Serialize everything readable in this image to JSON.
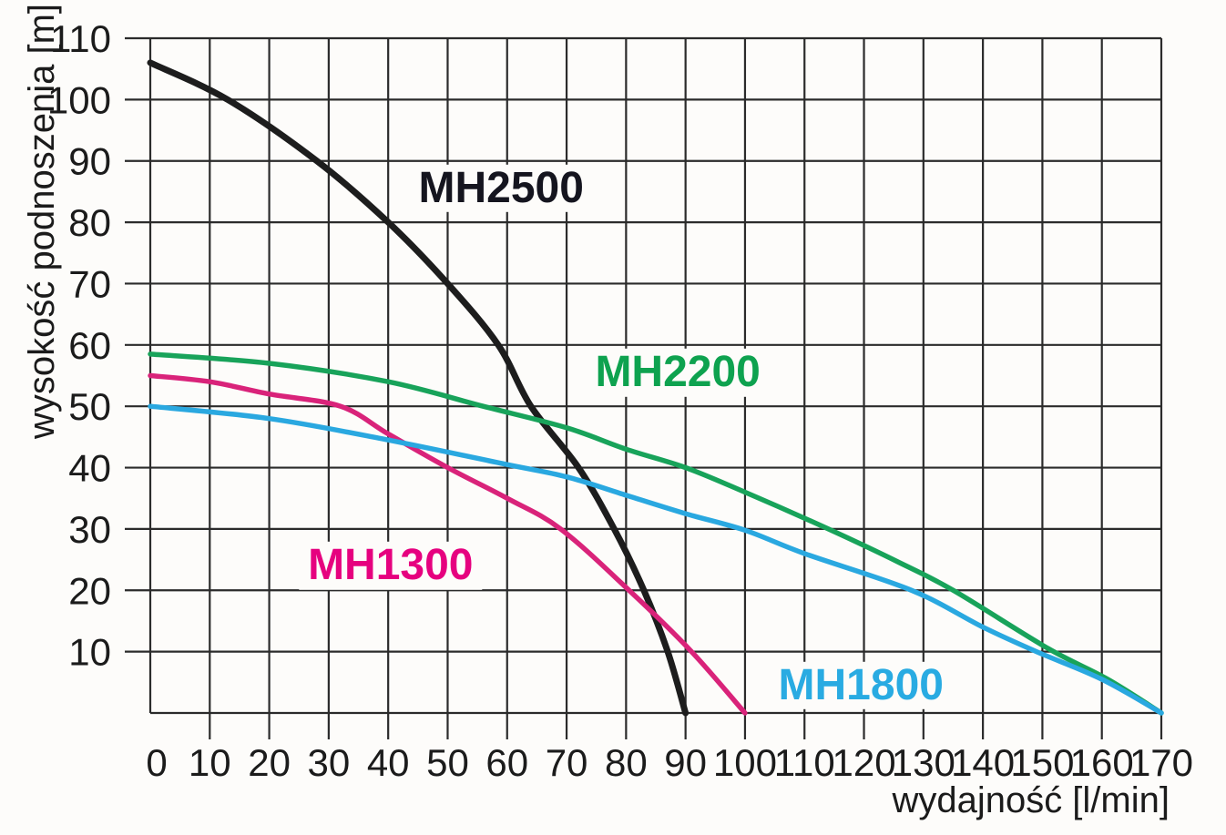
{
  "chart_data": {
    "type": "line",
    "title": "",
    "xlabel": "wydajność [l/min]",
    "ylabel": "wysokość podnoszenia [m]",
    "xlim": [
      0,
      170
    ],
    "ylim": [
      0,
      110
    ],
    "x_ticks": [
      0,
      10,
      20,
      30,
      40,
      50,
      60,
      70,
      80,
      90,
      100,
      110,
      120,
      130,
      140,
      150,
      160,
      170
    ],
    "y_ticks": [
      10,
      20,
      30,
      40,
      50,
      60,
      70,
      80,
      90,
      100,
      110
    ],
    "grid": true,
    "legend_position": "inline-labels",
    "axis_color": "#2b2b2b",
    "text_color": "#1b1b1b",
    "background": "#fdfcfa",
    "series": [
      {
        "name": "MH2500",
        "color": "#1d1d1d",
        "label_color": "#15151f",
        "label_pos": {
          "x": 59,
          "y": 85.5
        },
        "points": [
          [
            0,
            106
          ],
          [
            13,
            100
          ],
          [
            28,
            90
          ],
          [
            40,
            80
          ],
          [
            50,
            70
          ],
          [
            58.5,
            60
          ],
          [
            64,
            50
          ],
          [
            72,
            40
          ],
          [
            78,
            30
          ],
          [
            83,
            20
          ],
          [
            87,
            10
          ],
          [
            90,
            0
          ]
        ]
      },
      {
        "name": "MH2200",
        "color": "#18a35a",
        "label_color": "#0ea24f",
        "label_pos": {
          "x": 88.7,
          "y": 55.5
        },
        "points": [
          [
            0,
            58.5
          ],
          [
            20,
            57
          ],
          [
            40,
            54
          ],
          [
            56,
            50
          ],
          [
            70,
            46.5
          ],
          [
            80,
            43
          ],
          [
            90,
            40
          ],
          [
            100,
            36
          ],
          [
            114,
            30
          ],
          [
            126,
            24.5
          ],
          [
            135,
            20
          ],
          [
            151,
            10.5
          ],
          [
            161,
            5.5
          ],
          [
            170,
            0
          ]
        ]
      },
      {
        "name": "MH1300",
        "color": "#d9237a",
        "label_color": "#e6017f",
        "label_pos": {
          "x": 40.4,
          "y": 24
        },
        "points": [
          [
            0,
            55
          ],
          [
            10,
            54
          ],
          [
            20,
            52
          ],
          [
            32,
            50
          ],
          [
            40,
            45.5
          ],
          [
            50,
            40
          ],
          [
            60,
            35
          ],
          [
            69,
            30
          ],
          [
            80.5,
            20
          ],
          [
            91,
            10
          ],
          [
            100,
            0
          ]
        ]
      },
      {
        "name": "MH1800",
        "color": "#2aa8e0",
        "label_color": "#29abe2",
        "label_pos": {
          "x": 119.5,
          "y": 4.5
        },
        "points": [
          [
            0,
            50
          ],
          [
            20,
            48
          ],
          [
            40,
            44.5
          ],
          [
            60,
            40.5
          ],
          [
            70,
            38.5
          ],
          [
            80,
            35.5
          ],
          [
            90,
            32.5
          ],
          [
            100,
            29.8
          ],
          [
            110,
            26
          ],
          [
            128,
            20
          ],
          [
            140,
            14
          ],
          [
            149,
            10
          ],
          [
            160,
            5.5
          ],
          [
            170,
            0
          ]
        ]
      }
    ]
  }
}
